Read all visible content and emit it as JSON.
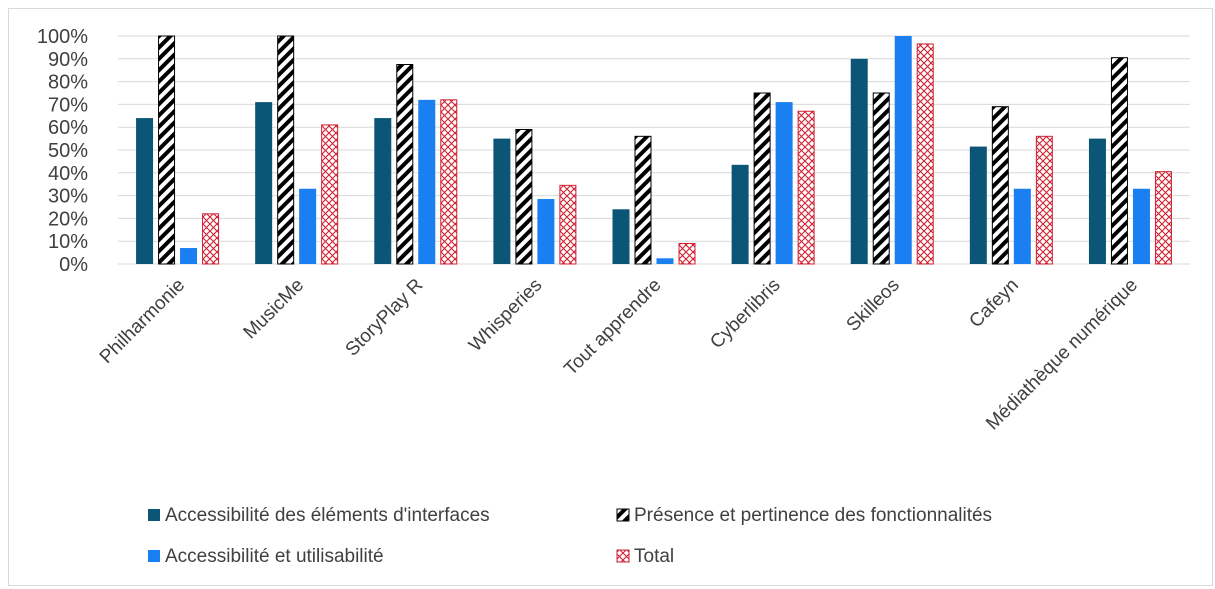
{
  "chart_data": {
    "type": "bar",
    "title": "",
    "xlabel": "",
    "ylabel": "",
    "ylim": [
      0,
      1
    ],
    "y_ticks": [
      "0%",
      "10%",
      "20%",
      "30%",
      "40%",
      "50%",
      "60%",
      "70%",
      "80%",
      "90%",
      "100%"
    ],
    "grid": true,
    "legend_position": "bottom",
    "categories": [
      "Philharmonie",
      "MusicMe",
      "StoryPlay R",
      "Whisperies",
      "Tout apprendre",
      "Cyberlibris",
      "Skilleos",
      "Cafeyn",
      "Médiathèque numérique"
    ],
    "series": [
      {
        "name": "Accessibilité des éléments d'interfaces",
        "color": "#0b5576",
        "pattern": "solid",
        "values": [
          0.64,
          0.71,
          0.64,
          0.55,
          0.24,
          0.435,
          0.9,
          0.515,
          0.55
        ]
      },
      {
        "name": "Présence et pertinence des fonctionnalités",
        "color": "#000000",
        "pattern": "diagonal-stripes",
        "values": [
          1.0,
          1.0,
          0.875,
          0.59,
          0.56,
          0.75,
          0.75,
          0.69,
          0.905
        ]
      },
      {
        "name": "Accessibilité et utilisabilité",
        "color": "#1a7ff0",
        "pattern": "solid",
        "values": [
          0.07,
          0.33,
          0.72,
          0.285,
          0.025,
          0.71,
          1.0,
          0.33,
          0.33
        ]
      },
      {
        "name": "Total",
        "color": "#d01f2f",
        "pattern": "crosshatch",
        "values": [
          0.22,
          0.61,
          0.72,
          0.345,
          0.09,
          0.67,
          0.965,
          0.56,
          0.405
        ]
      }
    ]
  }
}
